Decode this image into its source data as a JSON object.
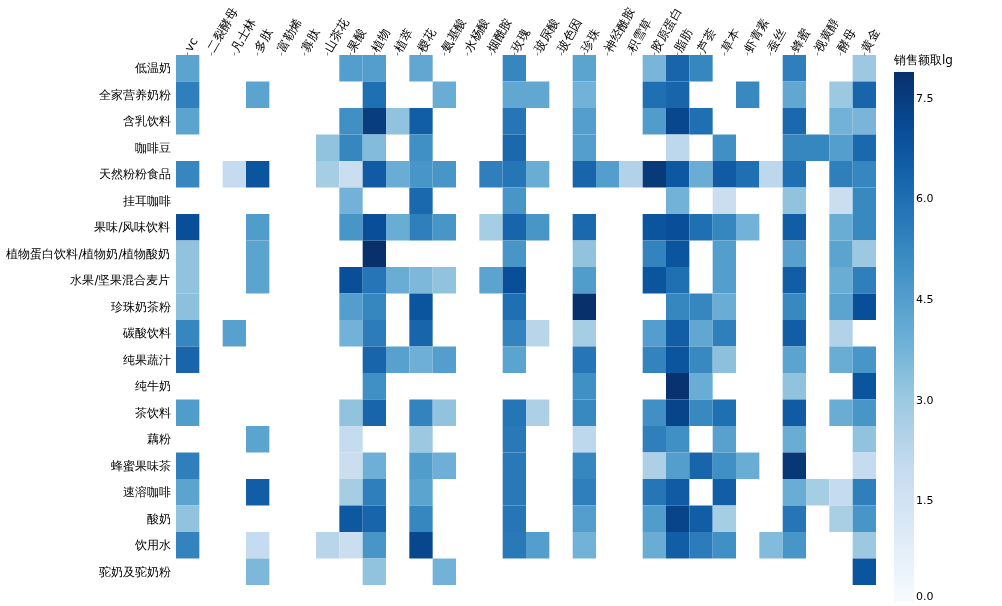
{
  "chart_data": {
    "type": "heatmap",
    "clabel": "销售额取lg",
    "categories": [
      "vc",
      "二裂酵母",
      "凡士林",
      "多肽",
      "富勒烯",
      "寡肽",
      "山茶花",
      "果酸",
      "植物",
      "植萃",
      "樱花",
      "氨基酸",
      "水杨酸",
      "烟酰胺",
      "玫瑰",
      "玻尿酸",
      "玻色因",
      "珍珠",
      "神经酰胺",
      "积雪草",
      "胶原蛋白",
      "脂肪",
      "芦荟",
      "草本",
      "虾青素",
      "蚕丝",
      "蜂蜜",
      "视黄醇",
      "酵母",
      "黄金"
    ],
    "y_categories": [
      "低温奶",
      "全家营养奶粉",
      "含乳饮料",
      "咖啡豆",
      "天然粉粉食品",
      "挂耳咖啡",
      "果味/风味饮料",
      "植物蛋白饮料/植物奶/植物酸奶",
      "水果/坚果混合麦片",
      "珍珠奶茶粉",
      "碳酸饮料",
      "纯果蔬汁",
      "纯牛奶",
      "茶饮料",
      "藕粉",
      "蜂蜜果味茶",
      "速溶咖啡",
      "酸奶",
      "饮用水",
      "驼奶及驼奶粉"
    ],
    "cells": [
      [
        4.3,
        null,
        null,
        null,
        null,
        null,
        null,
        4.5,
        4.5,
        null,
        4.2,
        null,
        null,
        null,
        5.3,
        null,
        null,
        4.3,
        null,
        null,
        3.7,
        6.3,
        5.3,
        null,
        null,
        null,
        5.5,
        null,
        null,
        3.0
      ],
      [
        5.5,
        null,
        null,
        4.3,
        null,
        null,
        null,
        null,
        6.0,
        null,
        null,
        4.0,
        null,
        null,
        4.2,
        4.2,
        null,
        3.8,
        null,
        null,
        6.0,
        6.3,
        null,
        null,
        5.2,
        null,
        4.2,
        null,
        3.0,
        6.3
      ],
      [
        4.3,
        null,
        null,
        null,
        null,
        null,
        null,
        5.0,
        7.5,
        3.2,
        6.5,
        null,
        null,
        null,
        5.8,
        null,
        null,
        4.5,
        null,
        null,
        4.6,
        7.2,
        6.0,
        null,
        null,
        null,
        6.2,
        null,
        3.8,
        3.7
      ],
      [
        null,
        null,
        null,
        null,
        null,
        null,
        3.2,
        5.3,
        3.5,
        null,
        5.0,
        null,
        null,
        null,
        6.2,
        null,
        null,
        4.5,
        null,
        null,
        null,
        2.2,
        null,
        5.0,
        null,
        null,
        5.3,
        5.3,
        4.5,
        6.2
      ],
      [
        5.3,
        null,
        2.0,
        6.8,
        null,
        null,
        2.8,
        1.8,
        6.6,
        4.0,
        4.8,
        4.8,
        null,
        5.5,
        5.8,
        4.0,
        null,
        6.3,
        4.5,
        2.5,
        7.6,
        6.7,
        4.0,
        6.6,
        6.0,
        2.2,
        6.0,
        null,
        5.5,
        5.3
      ],
      [
        null,
        null,
        null,
        null,
        null,
        null,
        null,
        3.8,
        null,
        null,
        6.2,
        null,
        null,
        null,
        4.8,
        null,
        null,
        null,
        null,
        null,
        null,
        3.8,
        null,
        1.8,
        null,
        null,
        3.2,
        null,
        1.8,
        5.2
      ],
      [
        7.0,
        null,
        null,
        4.6,
        null,
        null,
        null,
        4.8,
        7.0,
        4.0,
        5.5,
        4.8,
        null,
        2.8,
        6.3,
        4.8,
        null,
        6.2,
        null,
        null,
        6.8,
        7.0,
        6.0,
        5.3,
        3.8,
        null,
        6.5,
        null,
        4.0,
        5.2
      ],
      [
        3.2,
        null,
        null,
        4.3,
        null,
        null,
        null,
        null,
        7.9,
        null,
        null,
        null,
        null,
        null,
        4.8,
        null,
        null,
        3.2,
        null,
        null,
        5.4,
        6.8,
        null,
        4.5,
        null,
        null,
        4.4,
        null,
        4.3,
        3.0
      ],
      [
        3.2,
        null,
        null,
        4.3,
        null,
        null,
        null,
        7.0,
        5.8,
        4.0,
        3.6,
        3.2,
        null,
        4.3,
        7.0,
        null,
        null,
        4.6,
        null,
        null,
        6.8,
        6.0,
        null,
        4.5,
        null,
        null,
        6.5,
        null,
        4.0,
        5.5
      ],
      [
        3.3,
        null,
        null,
        null,
        null,
        null,
        null,
        4.5,
        5.3,
        null,
        6.8,
        null,
        null,
        null,
        6.0,
        null,
        null,
        7.9,
        null,
        null,
        null,
        5.3,
        5.3,
        4.0,
        null,
        null,
        5.2,
        null,
        4.3,
        7.0
      ],
      [
        5.3,
        null,
        4.4,
        null,
        null,
        null,
        null,
        3.8,
        5.6,
        null,
        6.3,
        null,
        null,
        null,
        5.4,
        2.3,
        null,
        2.8,
        null,
        null,
        4.5,
        6.5,
        4.2,
        5.5,
        null,
        null,
        6.5,
        null,
        2.5,
        null
      ],
      [
        6.3,
        null,
        null,
        null,
        null,
        null,
        null,
        null,
        6.3,
        4.4,
        3.9,
        4.5,
        null,
        null,
        4.3,
        null,
        null,
        5.8,
        null,
        null,
        5.4,
        6.8,
        5.2,
        3.3,
        null,
        null,
        4.3,
        null,
        4.0,
        4.8
      ],
      [
        null,
        null,
        null,
        null,
        null,
        null,
        null,
        null,
        5.0,
        null,
        null,
        null,
        null,
        null,
        null,
        null,
        null,
        5.0,
        null,
        null,
        null,
        7.8,
        4.0,
        null,
        null,
        null,
        3.2,
        null,
        null,
        6.8
      ],
      [
        4.6,
        null,
        null,
        null,
        null,
        null,
        null,
        3.2,
        6.3,
        null,
        5.4,
        3.2,
        null,
        null,
        5.8,
        2.6,
        null,
        5.2,
        null,
        null,
        5.0,
        7.3,
        5.2,
        6.0,
        null,
        null,
        6.6,
        null,
        4.0,
        4.8
      ],
      [
        null,
        null,
        null,
        4.3,
        null,
        null,
        null,
        2.0,
        null,
        null,
        3.0,
        null,
        null,
        null,
        5.7,
        null,
        null,
        2.2,
        null,
        null,
        5.5,
        5.0,
        null,
        4.4,
        null,
        null,
        4.0,
        null,
        null,
        3.2
      ],
      [
        5.5,
        null,
        null,
        null,
        null,
        null,
        null,
        1.8,
        3.9,
        null,
        4.6,
        3.9,
        null,
        null,
        5.7,
        null,
        null,
        5.3,
        null,
        null,
        2.6,
        4.5,
        6.3,
        5.0,
        4.0,
        null,
        7.7,
        null,
        null,
        2.0
      ],
      [
        4.3,
        null,
        null,
        6.5,
        null,
        null,
        null,
        2.8,
        5.5,
        null,
        4.3,
        null,
        null,
        null,
        5.7,
        null,
        null,
        5.5,
        null,
        null,
        5.8,
        6.6,
        null,
        6.5,
        null,
        null,
        4.0,
        2.8,
        2.0,
        5.5
      ],
      [
        3.2,
        null,
        null,
        null,
        null,
        null,
        null,
        6.7,
        6.3,
        null,
        5.3,
        null,
        null,
        null,
        5.8,
        null,
        null,
        4.5,
        null,
        null,
        4.6,
        7.3,
        6.5,
        2.8,
        null,
        null,
        5.8,
        null,
        2.7,
        4.8
      ],
      [
        5.4,
        null,
        null,
        2.0,
        null,
        null,
        2.3,
        1.8,
        4.8,
        null,
        7.2,
        null,
        null,
        null,
        5.7,
        4.5,
        null,
        3.8,
        null,
        null,
        4.0,
        6.5,
        5.6,
        5.0,
        null,
        3.5,
        4.8,
        null,
        null,
        3.0
      ],
      [
        null,
        null,
        null,
        3.6,
        null,
        null,
        null,
        null,
        3.2,
        null,
        null,
        3.8,
        null,
        null,
        null,
        null,
        null,
        null,
        null,
        null,
        null,
        null,
        null,
        null,
        null,
        null,
        null,
        null,
        null,
        6.8
      ]
    ],
    "clim": [
      0,
      7.9
    ],
    "cticks": [
      {
        "value": 0,
        "label": "0.0"
      },
      {
        "value": 1.5,
        "label": "1.5"
      },
      {
        "value": 3.0,
        "label": "3.0"
      },
      {
        "value": 4.5,
        "label": "4.5"
      },
      {
        "value": 6.0,
        "label": "6.0"
      },
      {
        "value": 7.5,
        "label": "7.5"
      }
    ]
  }
}
